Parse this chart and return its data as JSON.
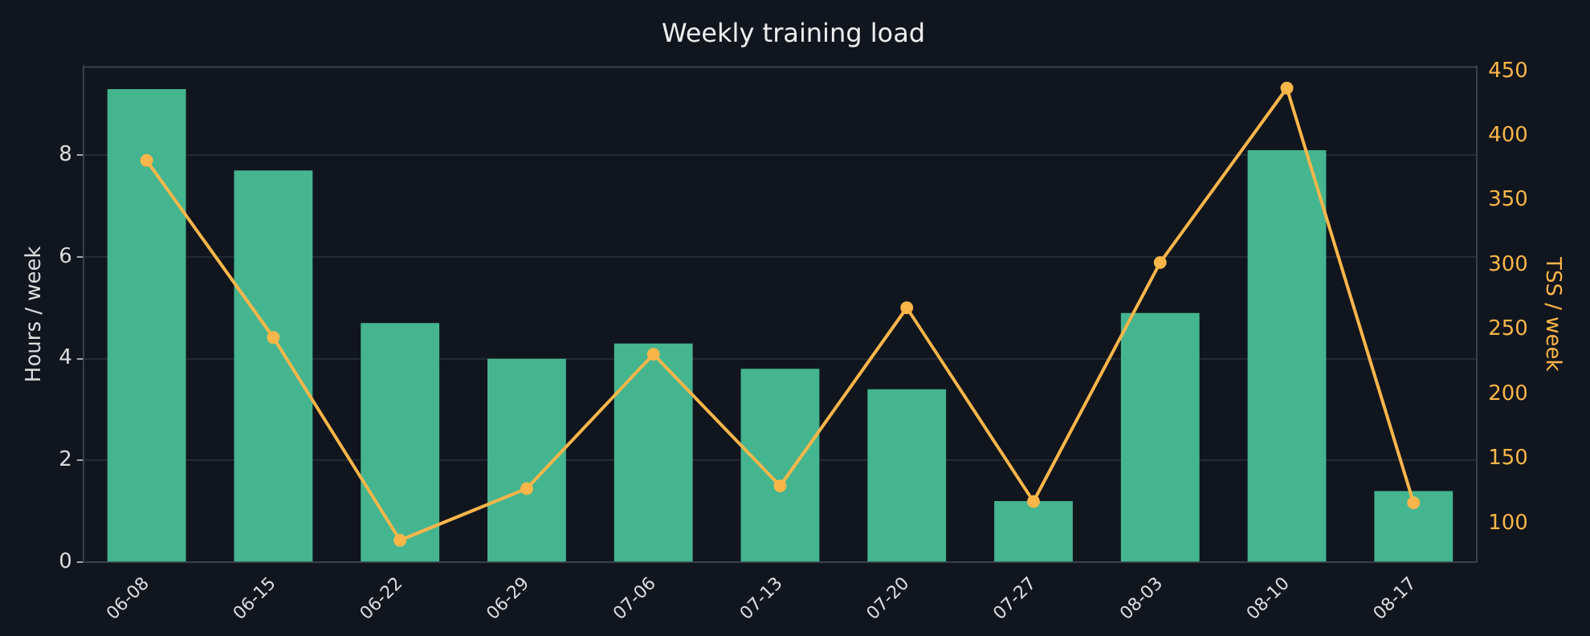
{
  "chart_data": {
    "type": "bar",
    "title": "Weekly training load",
    "ylabel": "Hours / week",
    "y2label": "TSS / week",
    "categories": [
      "06-08",
      "06-15",
      "06-22",
      "06-29",
      "07-06",
      "07-13",
      "07-20",
      "07-27",
      "08-03",
      "08-10",
      "08-17"
    ],
    "series": [
      {
        "color": "#44b58f",
        "values": [
          9.3,
          7.7,
          4.7,
          4.0,
          4.3,
          3.8,
          3.4,
          1.2,
          4.9,
          8.1,
          1.4
        ]
      },
      {
        "type": "line",
        "axis": "y2",
        "color": "#fbb64a",
        "marker": "circle",
        "values": [
          381,
          244,
          87,
          127,
          231,
          129,
          267,
          117,
          302,
          437,
          116
        ]
      }
    ],
    "ylim": [
      0,
      9.75
    ],
    "yticks": [
      0,
      2,
      4,
      6,
      8
    ],
    "y2lim": [
      70,
      454
    ],
    "y2ticks": [
      100,
      150,
      200,
      250,
      300,
      350,
      400,
      450
    ],
    "grid": "y",
    "legend": false
  }
}
